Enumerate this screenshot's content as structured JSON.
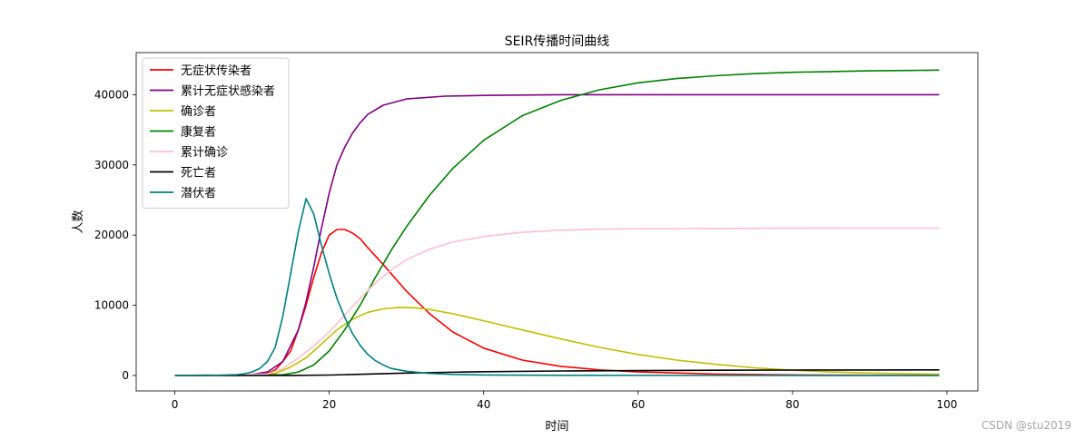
{
  "chart_data": {
    "type": "line",
    "title": "SEIR传播时间曲线",
    "xlabel": "时间",
    "ylabel": "人数",
    "xlim": [
      -5,
      104
    ],
    "ylim": [
      -2200,
      46000
    ],
    "xticks": [
      0,
      20,
      40,
      60,
      80,
      100
    ],
    "yticks": [
      0,
      10000,
      20000,
      30000,
      40000
    ],
    "legend_position": "top-left",
    "grid": false,
    "series": [
      {
        "name": "无症状传染者",
        "color": "#ff0000",
        "points": [
          [
            0,
            0
          ],
          [
            8,
            10
          ],
          [
            10,
            80
          ],
          [
            12,
            300
          ],
          [
            13,
            800
          ],
          [
            14,
            2000
          ],
          [
            15,
            3500
          ],
          [
            16,
            6500
          ],
          [
            17,
            10000
          ],
          [
            18,
            14000
          ],
          [
            19,
            17500
          ],
          [
            20,
            20000
          ],
          [
            21,
            20800
          ],
          [
            22,
            20800
          ],
          [
            23,
            20300
          ],
          [
            24,
            19500
          ],
          [
            25,
            18200
          ],
          [
            27,
            15800
          ],
          [
            30,
            12000
          ],
          [
            33,
            8800
          ],
          [
            36,
            6200
          ],
          [
            40,
            3900
          ],
          [
            45,
            2200
          ],
          [
            50,
            1300
          ],
          [
            55,
            800
          ],
          [
            60,
            500
          ],
          [
            70,
            200
          ],
          [
            80,
            90
          ],
          [
            90,
            40
          ],
          [
            99,
            20
          ]
        ]
      },
      {
        "name": "累计无症状感染者",
        "color": "#800080",
        "points": [
          [
            0,
            0
          ],
          [
            10,
            150
          ],
          [
            12,
            500
          ],
          [
            14,
            2000
          ],
          [
            16,
            6500
          ],
          [
            17,
            10500
          ],
          [
            18,
            15500
          ],
          [
            19,
            21000
          ],
          [
            20,
            26000
          ],
          [
            21,
            30000
          ],
          [
            22,
            32500
          ],
          [
            23,
            34500
          ],
          [
            24,
            36000
          ],
          [
            25,
            37200
          ],
          [
            27,
            38500
          ],
          [
            30,
            39400
          ],
          [
            35,
            39800
          ],
          [
            40,
            39900
          ],
          [
            50,
            40000
          ],
          [
            60,
            40000
          ],
          [
            80,
            40000
          ],
          [
            99,
            40000
          ]
        ]
      },
      {
        "name": "确诊者",
        "color": "#bfbf00",
        "points": [
          [
            0,
            0
          ],
          [
            10,
            50
          ],
          [
            13,
            300
          ],
          [
            15,
            1200
          ],
          [
            17,
            2500
          ],
          [
            19,
            4500
          ],
          [
            21,
            6500
          ],
          [
            23,
            8000
          ],
          [
            25,
            9000
          ],
          [
            27,
            9500
          ],
          [
            29,
            9700
          ],
          [
            31,
            9650
          ],
          [
            33,
            9400
          ],
          [
            36,
            8800
          ],
          [
            40,
            7800
          ],
          [
            45,
            6500
          ],
          [
            50,
            5200
          ],
          [
            55,
            4000
          ],
          [
            60,
            3000
          ],
          [
            65,
            2200
          ],
          [
            70,
            1600
          ],
          [
            75,
            1100
          ],
          [
            80,
            750
          ],
          [
            85,
            500
          ],
          [
            90,
            350
          ],
          [
            95,
            240
          ],
          [
            99,
            180
          ]
        ]
      },
      {
        "name": "康复者",
        "color": "#008000",
        "points": [
          [
            0,
            0
          ],
          [
            14,
            100
          ],
          [
            16,
            500
          ],
          [
            18,
            1500
          ],
          [
            20,
            3500
          ],
          [
            22,
            6500
          ],
          [
            24,
            10000
          ],
          [
            26,
            14000
          ],
          [
            28,
            17800
          ],
          [
            30,
            21200
          ],
          [
            33,
            25700
          ],
          [
            36,
            29500
          ],
          [
            40,
            33500
          ],
          [
            45,
            37000
          ],
          [
            50,
            39200
          ],
          [
            55,
            40700
          ],
          [
            60,
            41700
          ],
          [
            65,
            42300
          ],
          [
            70,
            42700
          ],
          [
            75,
            43000
          ],
          [
            80,
            43200
          ],
          [
            85,
            43300
          ],
          [
            90,
            43400
          ],
          [
            95,
            43450
          ],
          [
            99,
            43500
          ]
        ]
      },
      {
        "name": "累计确诊",
        "color": "#ffc0cb",
        "points": [
          [
            0,
            0
          ],
          [
            12,
            200
          ],
          [
            14,
            1000
          ],
          [
            16,
            2500
          ],
          [
            18,
            4200
          ],
          [
            20,
            6200
          ],
          [
            22,
            8600
          ],
          [
            24,
            11000
          ],
          [
            26,
            13200
          ],
          [
            28,
            15000
          ],
          [
            30,
            16500
          ],
          [
            33,
            18000
          ],
          [
            36,
            19000
          ],
          [
            40,
            19800
          ],
          [
            45,
            20400
          ],
          [
            50,
            20700
          ],
          [
            55,
            20850
          ],
          [
            60,
            20900
          ],
          [
            70,
            20950
          ],
          [
            80,
            20980
          ],
          [
            90,
            20990
          ],
          [
            99,
            21000
          ]
        ]
      },
      {
        "name": "死亡者",
        "color": "#000000",
        "points": [
          [
            0,
            0
          ],
          [
            15,
            10
          ],
          [
            20,
            60
          ],
          [
            25,
            200
          ],
          [
            30,
            350
          ],
          [
            35,
            450
          ],
          [
            40,
            540
          ],
          [
            50,
            640
          ],
          [
            60,
            700
          ],
          [
            70,
            740
          ],
          [
            80,
            770
          ],
          [
            90,
            790
          ],
          [
            99,
            800
          ]
        ]
      },
      {
        "name": "潜伏者",
        "color": "#008080",
        "points": [
          [
            0,
            0
          ],
          [
            5,
            10
          ],
          [
            8,
            100
          ],
          [
            9,
            250
          ],
          [
            10,
            500
          ],
          [
            11,
            1000
          ],
          [
            12,
            2000
          ],
          [
            13,
            4000
          ],
          [
            14,
            8500
          ],
          [
            15,
            14500
          ],
          [
            16,
            20500
          ],
          [
            17,
            25200
          ],
          [
            18,
            23000
          ],
          [
            19,
            18500
          ],
          [
            20,
            14500
          ],
          [
            21,
            11000
          ],
          [
            22,
            8300
          ],
          [
            23,
            6000
          ],
          [
            24,
            4300
          ],
          [
            25,
            3000
          ],
          [
            26,
            2100
          ],
          [
            27,
            1500
          ],
          [
            28,
            1000
          ],
          [
            30,
            600
          ],
          [
            33,
            300
          ],
          [
            36,
            150
          ],
          [
            40,
            80
          ],
          [
            50,
            20
          ],
          [
            99,
            0
          ]
        ]
      }
    ]
  },
  "watermark": "CSDN @stu2019"
}
